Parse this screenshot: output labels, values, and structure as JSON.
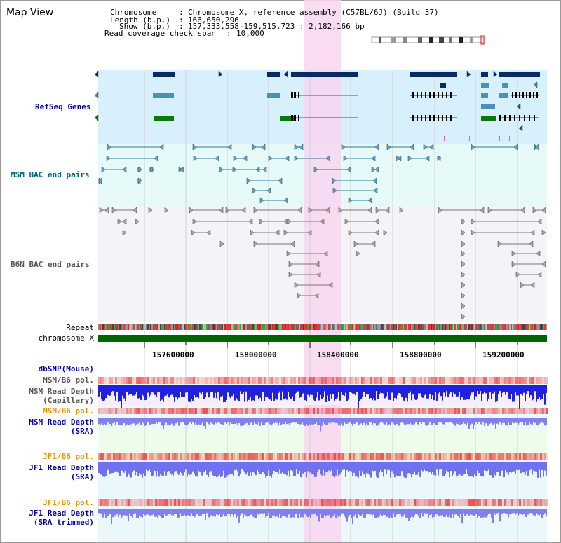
{
  "app": {
    "title": "Map View"
  },
  "header": {
    "chromosome_label": "Chromosome",
    "chromosome_value": "Chromosome X, reference assembly (C57BL/6J) (Build 37)",
    "length_label": "Length (b.p.)",
    "length_value": "166,650,296",
    "show_label": "Show (b.p.)",
    "show_value": "157,333,558-159,515,723 : 2,182,166 bp",
    "coverage_label": "Read coverage check span",
    "coverage_value": "10,000"
  },
  "tracks": {
    "refseq": "RefSeq Genes",
    "msm_bac": "MSM BAC end pairs",
    "b6n_bac": "B6N BAC end pairs",
    "repeat": "Repeat",
    "chromosome": "chromosome X",
    "dbsnp": "dbSNP(Mouse)",
    "msm_b6_pol_1": "MSM/B6 pol.",
    "msm_depth_cap_1": "MSM Read Depth",
    "msm_depth_cap_2": "(Capillary)",
    "msm_b6_pol_2": "MSM/B6 pol.",
    "msm_depth_sra_1": "MSM Read Depth",
    "msm_depth_sra_2": "(SRA)",
    "jf1_b6_pol_1": "JF1/B6 pol.",
    "jf1_depth_sra_1": "JF1 Read Depth",
    "jf1_depth_sra_2": "(SRA)",
    "jf1_b6_pol_2": "JF1/B6 pol.",
    "jf1_depth_trim_1": "JF1 Read Depth",
    "jf1_depth_trim_2": "(SRA trimmed)"
  },
  "axis": {
    "ticks": [
      "157600000",
      "158000000",
      "158400000",
      "158800000",
      "159200000"
    ]
  },
  "colors": {
    "refseq_bg": "#d8f0fc",
    "msm_bg": "#e6fafa",
    "b6n_bg": "#f4f4f8",
    "highlight": "#f8d6f0",
    "label_blue": "#0000aa",
    "label_teal": "#006688",
    "label_orange": "#e69500",
    "label_gray": "#555555",
    "chromosome_bar": "#006400"
  }
}
